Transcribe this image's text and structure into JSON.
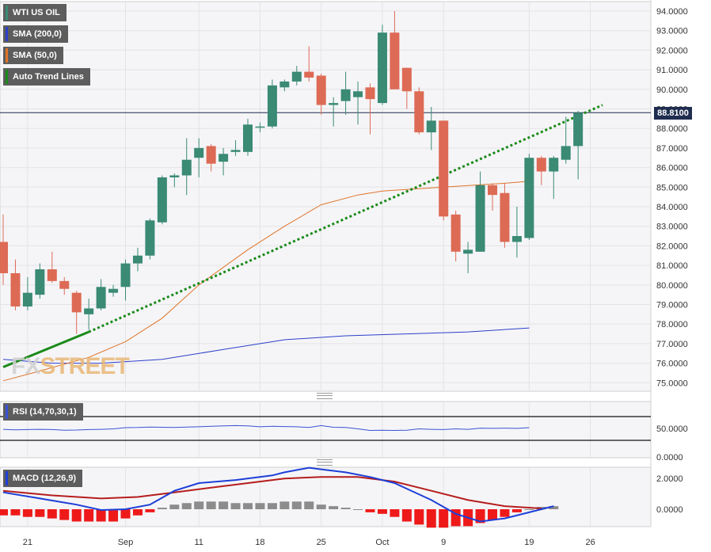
{
  "legend": {
    "symbol": "WTI US OIL",
    "sma200": "SMA (200,0)",
    "sma50": "SMA (50,0)",
    "trend": "Auto Trend Lines",
    "rsi": "RSI (14,70,30,1)",
    "macd": "MACD (12,26,9)"
  },
  "colors": {
    "up": "#3a8a74",
    "down": "#dd6a55",
    "sma200": "#2d3fcb",
    "sma50": "#e0742a",
    "trend": "#1a8a1a",
    "rsi": "#3a52d6",
    "macd_line": "#1d3fd8",
    "macd_signal": "#b51d1d",
    "hist_neg": "#ee1a1a",
    "hist_pos": "#8c8c8c"
  },
  "price_tag": "88.8100",
  "watermark": {
    "a": "FX",
    "b": "STREET"
  },
  "chart_data": {
    "type": "candlestick",
    "x_labels": [
      {
        "label": "21",
        "index": 1
      },
      {
        "label": "Sep",
        "index": 9
      },
      {
        "label": "11",
        "index": 15
      },
      {
        "label": "18",
        "index": 20
      },
      {
        "label": "25",
        "index": 25
      },
      {
        "label": "Oct",
        "index": 30
      },
      {
        "label": "9",
        "index": 35
      },
      {
        "label": "19",
        "index": 42
      },
      {
        "label": "26",
        "index": 47
      }
    ],
    "price_axis": {
      "ticks": [
        "94.0000",
        "93.0000",
        "92.0000",
        "91.0000",
        "90.0000",
        "89.0000",
        "88.0000",
        "87.0000",
        "86.0000",
        "85.0000",
        "84.0000",
        "83.0000",
        "82.0000",
        "81.0000",
        "80.0000",
        "79.0000",
        "78.0000",
        "77.0000",
        "76.0000",
        "75.0000"
      ],
      "min": 74.5,
      "max": 94.3
    },
    "last_price": 88.81,
    "candles": [
      {
        "o": 82.2,
        "h": 83.6,
        "l": 80.0,
        "c": 80.6
      },
      {
        "o": 80.6,
        "h": 81.3,
        "l": 78.7,
        "c": 78.9
      },
      {
        "o": 78.9,
        "h": 80.4,
        "l": 78.7,
        "c": 79.6
      },
      {
        "o": 79.5,
        "h": 81.1,
        "l": 79.3,
        "c": 80.8
      },
      {
        "o": 80.8,
        "h": 81.7,
        "l": 80.1,
        "c": 80.2
      },
      {
        "o": 80.2,
        "h": 80.4,
        "l": 79.5,
        "c": 79.8
      },
      {
        "o": 79.6,
        "h": 79.7,
        "l": 77.5,
        "c": 78.6
      },
      {
        "o": 78.5,
        "h": 79.3,
        "l": 77.7,
        "c": 78.8
      },
      {
        "o": 78.8,
        "h": 80.3,
        "l": 78.7,
        "c": 79.9
      },
      {
        "o": 79.6,
        "h": 80.0,
        "l": 79.4,
        "c": 79.8
      },
      {
        "o": 79.9,
        "h": 81.3,
        "l": 79.2,
        "c": 81.1
      },
      {
        "o": 81.1,
        "h": 81.9,
        "l": 80.7,
        "c": 81.5
      },
      {
        "o": 81.5,
        "h": 83.4,
        "l": 81.3,
        "c": 83.3
      },
      {
        "o": 83.2,
        "h": 85.6,
        "l": 83.1,
        "c": 85.5
      },
      {
        "o": 85.5,
        "h": 85.7,
        "l": 85.0,
        "c": 85.6
      },
      {
        "o": 85.6,
        "h": 87.5,
        "l": 84.6,
        "c": 86.4
      },
      {
        "o": 86.5,
        "h": 87.5,
        "l": 85.5,
        "c": 87.0
      },
      {
        "o": 87.1,
        "h": 87.2,
        "l": 85.8,
        "c": 86.2
      },
      {
        "o": 86.3,
        "h": 87.0,
        "l": 85.6,
        "c": 86.7
      },
      {
        "o": 86.8,
        "h": 87.4,
        "l": 86.6,
        "c": 86.9
      },
      {
        "o": 86.8,
        "h": 88.5,
        "l": 86.6,
        "c": 88.2
      },
      {
        "o": 88.1,
        "h": 88.3,
        "l": 87.8,
        "c": 88.1
      },
      {
        "o": 88.1,
        "h": 90.5,
        "l": 88.0,
        "c": 90.2
      },
      {
        "o": 90.1,
        "h": 90.5,
        "l": 89.9,
        "c": 90.4
      },
      {
        "o": 90.4,
        "h": 91.2,
        "l": 90.2,
        "c": 90.9
      },
      {
        "o": 90.9,
        "h": 92.2,
        "l": 90.4,
        "c": 90.6
      },
      {
        "o": 90.7,
        "h": 90.8,
        "l": 88.7,
        "c": 89.2
      },
      {
        "o": 89.2,
        "h": 89.6,
        "l": 88.1,
        "c": 89.3
      },
      {
        "o": 89.4,
        "h": 90.9,
        "l": 88.7,
        "c": 90.0
      },
      {
        "o": 89.6,
        "h": 90.4,
        "l": 88.2,
        "c": 89.9
      },
      {
        "o": 90.1,
        "h": 90.3,
        "l": 87.7,
        "c": 89.5
      },
      {
        "o": 89.3,
        "h": 93.3,
        "l": 89.2,
        "c": 92.9
      },
      {
        "o": 92.9,
        "h": 94.0,
        "l": 90.1,
        "c": 90.0
      },
      {
        "o": 91.1,
        "h": 91.1,
        "l": 89.0,
        "c": 89.9
      },
      {
        "o": 89.9,
        "h": 90.1,
        "l": 87.7,
        "c": 87.8
      },
      {
        "o": 87.8,
        "h": 89.1,
        "l": 86.9,
        "c": 88.4
      },
      {
        "o": 88.4,
        "h": 88.4,
        "l": 83.3,
        "c": 83.5
      },
      {
        "o": 83.6,
        "h": 83.8,
        "l": 81.2,
        "c": 81.7
      },
      {
        "o": 81.6,
        "h": 82.2,
        "l": 80.6,
        "c": 81.8
      },
      {
        "o": 81.7,
        "h": 85.8,
        "l": 81.7,
        "c": 85.1
      },
      {
        "o": 85.1,
        "h": 85.2,
        "l": 83.8,
        "c": 84.6
      },
      {
        "o": 84.7,
        "h": 85.2,
        "l": 81.9,
        "c": 82.2
      },
      {
        "o": 82.2,
        "h": 84.0,
        "l": 81.4,
        "c": 82.5
      },
      {
        "o": 82.4,
        "h": 86.7,
        "l": 82.3,
        "c": 86.5
      },
      {
        "o": 86.5,
        "h": 86.6,
        "l": 85.1,
        "c": 85.8
      },
      {
        "o": 85.8,
        "h": 86.6,
        "l": 84.4,
        "c": 86.5
      },
      {
        "o": 86.4,
        "h": 88.6,
        "l": 86.2,
        "c": 87.1
      },
      {
        "o": 87.1,
        "h": 88.9,
        "l": 85.4,
        "c": 88.8
      }
    ],
    "candle_index_offset": -1,
    "sma50": [
      [
        -1,
        75.1
      ],
      [
        2,
        75.6
      ],
      [
        6,
        76.3
      ],
      [
        9,
        77.1
      ],
      [
        12,
        78.3
      ],
      [
        15,
        80.0
      ],
      [
        19,
        81.8
      ],
      [
        22,
        83.0
      ],
      [
        25,
        84.1
      ],
      [
        28,
        84.6
      ],
      [
        30,
        84.8
      ],
      [
        35,
        85.0
      ],
      [
        40,
        85.2
      ],
      [
        42,
        85.3
      ]
    ],
    "sma200": [
      [
        -1,
        76.2
      ],
      [
        3,
        76.0
      ],
      [
        7,
        76.0
      ],
      [
        12,
        76.2
      ],
      [
        17,
        76.7
      ],
      [
        22,
        77.2
      ],
      [
        27,
        77.4
      ],
      [
        32,
        77.5
      ],
      [
        37,
        77.6
      ],
      [
        42,
        77.8
      ]
    ],
    "trend_solid": [
      [
        -1,
        75.8
      ],
      [
        6,
        77.6
      ]
    ],
    "trend_dotted": [
      [
        6,
        77.6
      ],
      [
        48,
        89.2
      ]
    ],
    "rsi": {
      "ticks": [
        "50.0000",
        "0.0000"
      ],
      "upper": 70,
      "lower": 30,
      "values": [
        48,
        46,
        47,
        48,
        47,
        44,
        45,
        47,
        48,
        50,
        55,
        56,
        58,
        57,
        56,
        58,
        59,
        61,
        63,
        64,
        63,
        59,
        61,
        60,
        59,
        56,
        64,
        57,
        56,
        50,
        43,
        44,
        43,
        44,
        50,
        48,
        47,
        50,
        48,
        53,
        52,
        53,
        52,
        55
      ]
    },
    "macd": {
      "ticks": [
        "2.0000",
        "0.0000"
      ],
      "line": [
        [
          -1,
          1.1
        ],
        [
          2,
          0.7
        ],
        [
          5,
          0.3
        ],
        [
          7,
          -0.05
        ],
        [
          9,
          0.0
        ],
        [
          11,
          0.3
        ],
        [
          13,
          1.2
        ],
        [
          15,
          1.7
        ],
        [
          18,
          1.9
        ],
        [
          21,
          2.2
        ],
        [
          22,
          2.4
        ],
        [
          24,
          2.7
        ],
        [
          25,
          2.6
        ],
        [
          27,
          2.4
        ],
        [
          29,
          2.1
        ],
        [
          31,
          1.7
        ],
        [
          34,
          0.6
        ],
        [
          36,
          -0.3
        ],
        [
          38,
          -0.8
        ],
        [
          40,
          -0.6
        ],
        [
          42,
          -0.2
        ],
        [
          44,
          0.2
        ]
      ],
      "signal": [
        [
          -1,
          1.2
        ],
        [
          3,
          0.9
        ],
        [
          7,
          0.7
        ],
        [
          10,
          0.8
        ],
        [
          13,
          1.1
        ],
        [
          16,
          1.4
        ],
        [
          19,
          1.7
        ],
        [
          22,
          2.0
        ],
        [
          25,
          2.1
        ],
        [
          28,
          2.1
        ],
        [
          31,
          1.8
        ],
        [
          34,
          1.2
        ],
        [
          37,
          0.6
        ],
        [
          40,
          0.2
        ],
        [
          43,
          0.05
        ]
      ],
      "histogram": [
        -0.4,
        -0.4,
        -0.5,
        -0.5,
        -0.6,
        -0.7,
        -0.8,
        -0.8,
        -0.8,
        -0.8,
        -0.6,
        -0.4,
        -0.2,
        0.1,
        0.3,
        0.4,
        0.5,
        0.5,
        0.5,
        0.4,
        0.4,
        0.4,
        0.4,
        0.5,
        0.5,
        0.5,
        0.3,
        0.2,
        0.1,
        0.0,
        -0.2,
        -0.3,
        -0.5,
        -0.8,
        -1.0,
        -1.2,
        -1.2,
        -1.1,
        -1.1,
        -0.9,
        -0.7,
        -0.5,
        -0.2,
        0.0,
        0.15,
        0.2
      ]
    }
  }
}
